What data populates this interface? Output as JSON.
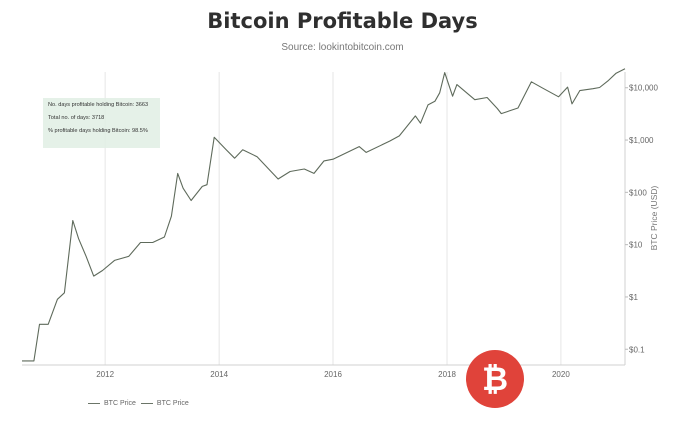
{
  "chart_data": {
    "type": "line",
    "title": "Bitcoin Profitable Days",
    "subtitle": "Source: lookintobitcoin.com",
    "ylabel": "BTC Price (USD)",
    "yscale": "log",
    "ylim": [
      0.05,
      20000
    ],
    "xlim": [
      "2010-07-17",
      "2021-02-15"
    ],
    "x_ticks": [
      "2012",
      "2014",
      "2016",
      "2018",
      "2020"
    ],
    "y_ticks": [
      {
        "value": 0.1,
        "label": "$0.1"
      },
      {
        "value": 1,
        "label": "$1"
      },
      {
        "value": 10,
        "label": "$10"
      },
      {
        "value": 100,
        "label": "$100"
      },
      {
        "value": 1000,
        "label": "$1,000"
      },
      {
        "value": 10000,
        "label": "$10,000"
      }
    ],
    "grid": "vertical",
    "legend_position": "bottom-left",
    "annotation": {
      "lines": [
        "No. days profitable holding Bitcoin: 3663",
        "Total no. of days: 3718",
        "% profitable days holding Bitcoin: 98.5%"
      ]
    },
    "series": [
      {
        "name": "BTC Price",
        "color": "#5e6a5b",
        "x": [
          "2010-07-17",
          "2010-10-01",
          "2010-11-06",
          "2011-01-01",
          "2011-03-01",
          "2011-04-15",
          "2011-06-08",
          "2011-07-15",
          "2011-09-01",
          "2011-10-20",
          "2011-12-15",
          "2012-03-01",
          "2012-06-01",
          "2012-08-15",
          "2012-11-01",
          "2013-01-15",
          "2013-03-01",
          "2013-04-10",
          "2013-05-15",
          "2013-07-05",
          "2013-09-15",
          "2013-10-15",
          "2013-11-30",
          "2014-02-15",
          "2014-04-10",
          "2014-06-01",
          "2014-09-01",
          "2015-01-14",
          "2015-04-01",
          "2015-07-01",
          "2015-09-01",
          "2015-11-04",
          "2016-01-01",
          "2016-06-17",
          "2016-08-01",
          "2016-12-31",
          "2017-03-01",
          "2017-06-12",
          "2017-07-15",
          "2017-09-01",
          "2017-10-15",
          "2017-11-15",
          "2017-12-17",
          "2018-02-06",
          "2018-03-05",
          "2018-06-28",
          "2018-09-15",
          "2018-11-20",
          "2018-12-15",
          "2019-04-01",
          "2019-06-26",
          "2019-09-01",
          "2019-12-17",
          "2020-02-13",
          "2020-03-12",
          "2020-05-01",
          "2020-07-25",
          "2020-09-05",
          "2020-11-01",
          "2020-12-20",
          "2021-02-15"
        ],
        "y": [
          0.06,
          0.06,
          0.3,
          0.3,
          0.9,
          1.2,
          29,
          13,
          6,
          2.5,
          3.2,
          5,
          6,
          11,
          11,
          14,
          35,
          230,
          120,
          70,
          130,
          140,
          1130,
          650,
          450,
          650,
          480,
          180,
          250,
          280,
          230,
          400,
          430,
          750,
          580,
          960,
          1200,
          2900,
          2100,
          4700,
          5500,
          8000,
          19500,
          6900,
          11500,
          5900,
          6500,
          4000,
          3200,
          4100,
          13000,
          10000,
          6700,
          10300,
          4900,
          8800,
          9600,
          10100,
          13800,
          19000,
          23000
        ]
      }
    ]
  },
  "logo": {
    "name": "bitcoin-logo",
    "glyph": "₿",
    "color": "#e0433a"
  }
}
